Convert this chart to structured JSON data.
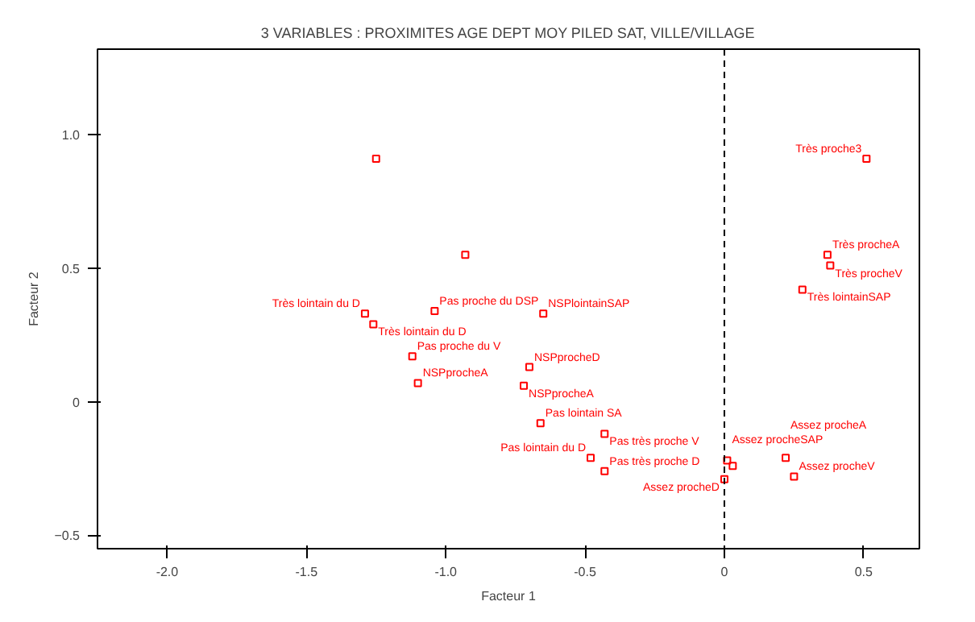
{
  "chart_data": {
    "type": "scatter",
    "title": "3 VARIABLES : PROXIMITES AGE DEPT MOY PILED SAT, VILLE/VILLAGE",
    "xlabel": "Facteur 1",
    "ylabel": "Facteur 2",
    "x": [
      -1.25,
      -0.93,
      0.51,
      0.37,
      0.38,
      0.28,
      -1.29,
      -1.04,
      -1.26,
      -0.65,
      -1.12,
      -1.1,
      -0.7,
      -0.72,
      -0.66,
      -0.43,
      -0.48,
      -0.43,
      0.01,
      0.03,
      0.22,
      0.25,
      0.0
    ],
    "values": [
      0.91,
      0.55,
      0.91,
      0.55,
      0.51,
      0.42,
      0.33,
      0.34,
      0.29,
      0.33,
      0.17,
      0.07,
      0.13,
      0.06,
      -0.08,
      -0.12,
      -0.21,
      -0.26,
      -0.22,
      -0.24,
      -0.21,
      -0.28,
      -0.29
    ],
    "color": "#ff0000",
    "marker": "square",
    "xlim": [
      -2.25,
      0.7
    ],
    "ylim": [
      -0.55,
      1.32
    ],
    "xticks": [
      {
        "value": -2,
        "label": "-2.0"
      },
      {
        "value": -1.5,
        "label": "-1.5"
      },
      {
        "value": -1,
        "label": "-1.0"
      },
      {
        "value": -0.5,
        "label": "-0.5"
      },
      0,
      0.5
    ],
    "yticks": [
      -0.5,
      0,
      0.5,
      {
        "value": 1,
        "label": "1.0"
      }
    ],
    "grid": false,
    "ref_lines": [
      {
        "axis": "x",
        "value": 0,
        "color": "#000000",
        "line_style": "dashed"
      }
    ],
    "annotations": [
      {
        "text": "Très proche3",
        "x": 0.51,
        "y": 0.91
      },
      {
        "text": "Très procheA",
        "x": 0.37,
        "y": 0.55
      },
      {
        "text": "Très procheV",
        "x": 0.38,
        "y": 0.51
      },
      {
        "text": "Très lointainSAP",
        "x": 0.28,
        "y": 0.42
      },
      {
        "text": "Très lointain du D",
        "x": -1.29,
        "y": 0.33
      },
      {
        "text": "Pas proche du DSP",
        "x": -1.04,
        "y": 0.34
      },
      {
        "text": "Très lointain du D",
        "x": -1.26,
        "y": 0.29
      },
      {
        "text": "NSPlointainSAP",
        "x": -0.65,
        "y": 0.33
      },
      {
        "text": "Pas proche du V",
        "x": -1.12,
        "y": 0.17
      },
      {
        "text": "NSPprocheA",
        "x": -1.1,
        "y": 0.07
      },
      {
        "text": "NSPprocheD",
        "x": -0.7,
        "y": 0.13
      },
      {
        "text": "NSPprocheA",
        "x": -0.72,
        "y": 0.06
      },
      {
        "text": "Pas lointain SA",
        "x": -0.66,
        "y": -0.08
      },
      {
        "text": "Pas très proche V",
        "x": -0.43,
        "y": -0.12
      },
      {
        "text": "Pas lointain du D",
        "x": -0.48,
        "y": -0.21
      },
      {
        "text": "Pas très proche D",
        "x": -0.43,
        "y": -0.26
      },
      {
        "text": "Assez procheSAP",
        "x": 0.01,
        "y": -0.22
      },
      {
        "text": "Assez procheA",
        "x": 0.22,
        "y": -0.21
      },
      {
        "text": "Assez procheV",
        "x": 0.25,
        "y": -0.28
      },
      {
        "text": "Assez procheD",
        "x": 0.0,
        "y": -0.29
      }
    ]
  }
}
